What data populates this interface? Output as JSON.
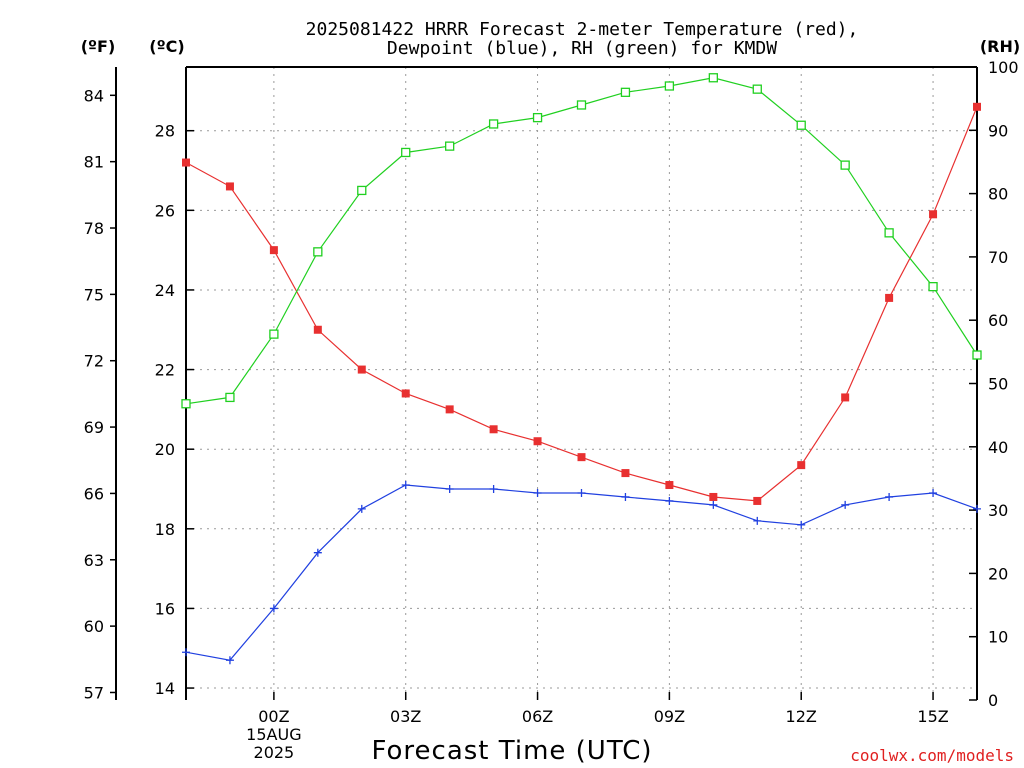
{
  "chart_data": {
    "type": "line",
    "title_line1": "2025081422 HRRR Forecast 2-meter Temperature (red),",
    "title_line2": "Dewpoint (blue), RH (green) for KMDW",
    "xlabel": "Forecast Time (UTC)",
    "left_unit_f": "(ºF)",
    "left_unit_c": "(ºC)",
    "right_unit": "(RH)",
    "credit": "coolwx.com/models",
    "x_hours": [
      -2,
      -1,
      0,
      1,
      2,
      3,
      4,
      5,
      6,
      7,
      8,
      9,
      10,
      11,
      12,
      13,
      14,
      15,
      16
    ],
    "x_tick_labels": [
      {
        "hour": 0,
        "lines": [
          "00Z",
          "15AUG",
          "2025"
        ]
      },
      {
        "hour": 3,
        "lines": [
          "03Z"
        ]
      },
      {
        "hour": 6,
        "lines": [
          "06Z"
        ]
      },
      {
        "hour": 9,
        "lines": [
          "09Z"
        ]
      },
      {
        "hour": 12,
        "lines": [
          "12Z"
        ]
      },
      {
        "hour": 15,
        "lines": [
          "15Z"
        ]
      }
    ],
    "xlim": [
      -2,
      16
    ],
    "celsius_ticks": [
      14,
      16,
      18,
      20,
      22,
      24,
      26,
      28
    ],
    "celsius_lim": [
      13.7,
      29.6
    ],
    "fahrenheit_ticks": [
      57,
      60,
      63,
      66,
      69,
      72,
      75,
      78,
      81,
      84
    ],
    "rh_ticks": [
      0,
      10,
      20,
      30,
      40,
      50,
      60,
      70,
      80,
      90,
      100
    ],
    "rh_lim": [
      0,
      100
    ],
    "grid": true,
    "series": [
      {
        "name": "Temperature",
        "color": "#e83030",
        "marker": "filled-square",
        "values": [
          27.2,
          26.6,
          25.0,
          23.0,
          22.0,
          21.4,
          21.0,
          20.5,
          20.2,
          19.8,
          19.4,
          19.1,
          18.8,
          18.7,
          19.6,
          21.3,
          23.8,
          25.9,
          28.6
        ]
      },
      {
        "name": "Dewpoint",
        "color": "#2040e0",
        "marker": "plus",
        "values": [
          14.9,
          14.7,
          16.0,
          17.4,
          18.5,
          19.1,
          19.0,
          19.0,
          18.9,
          18.9,
          18.8,
          18.7,
          18.6,
          18.2,
          18.1,
          18.6,
          18.8,
          18.9,
          18.5
        ]
      },
      {
        "name": "RH",
        "color": "#20d020",
        "marker": "open-square",
        "values": [
          46.8,
          47.8,
          57.8,
          70.8,
          80.5,
          86.5,
          87.5,
          91.0,
          92.0,
          94.0,
          96.0,
          97.0,
          98.3,
          96.5,
          90.8,
          84.5,
          73.8,
          65.3,
          54.5
        ]
      }
    ]
  }
}
